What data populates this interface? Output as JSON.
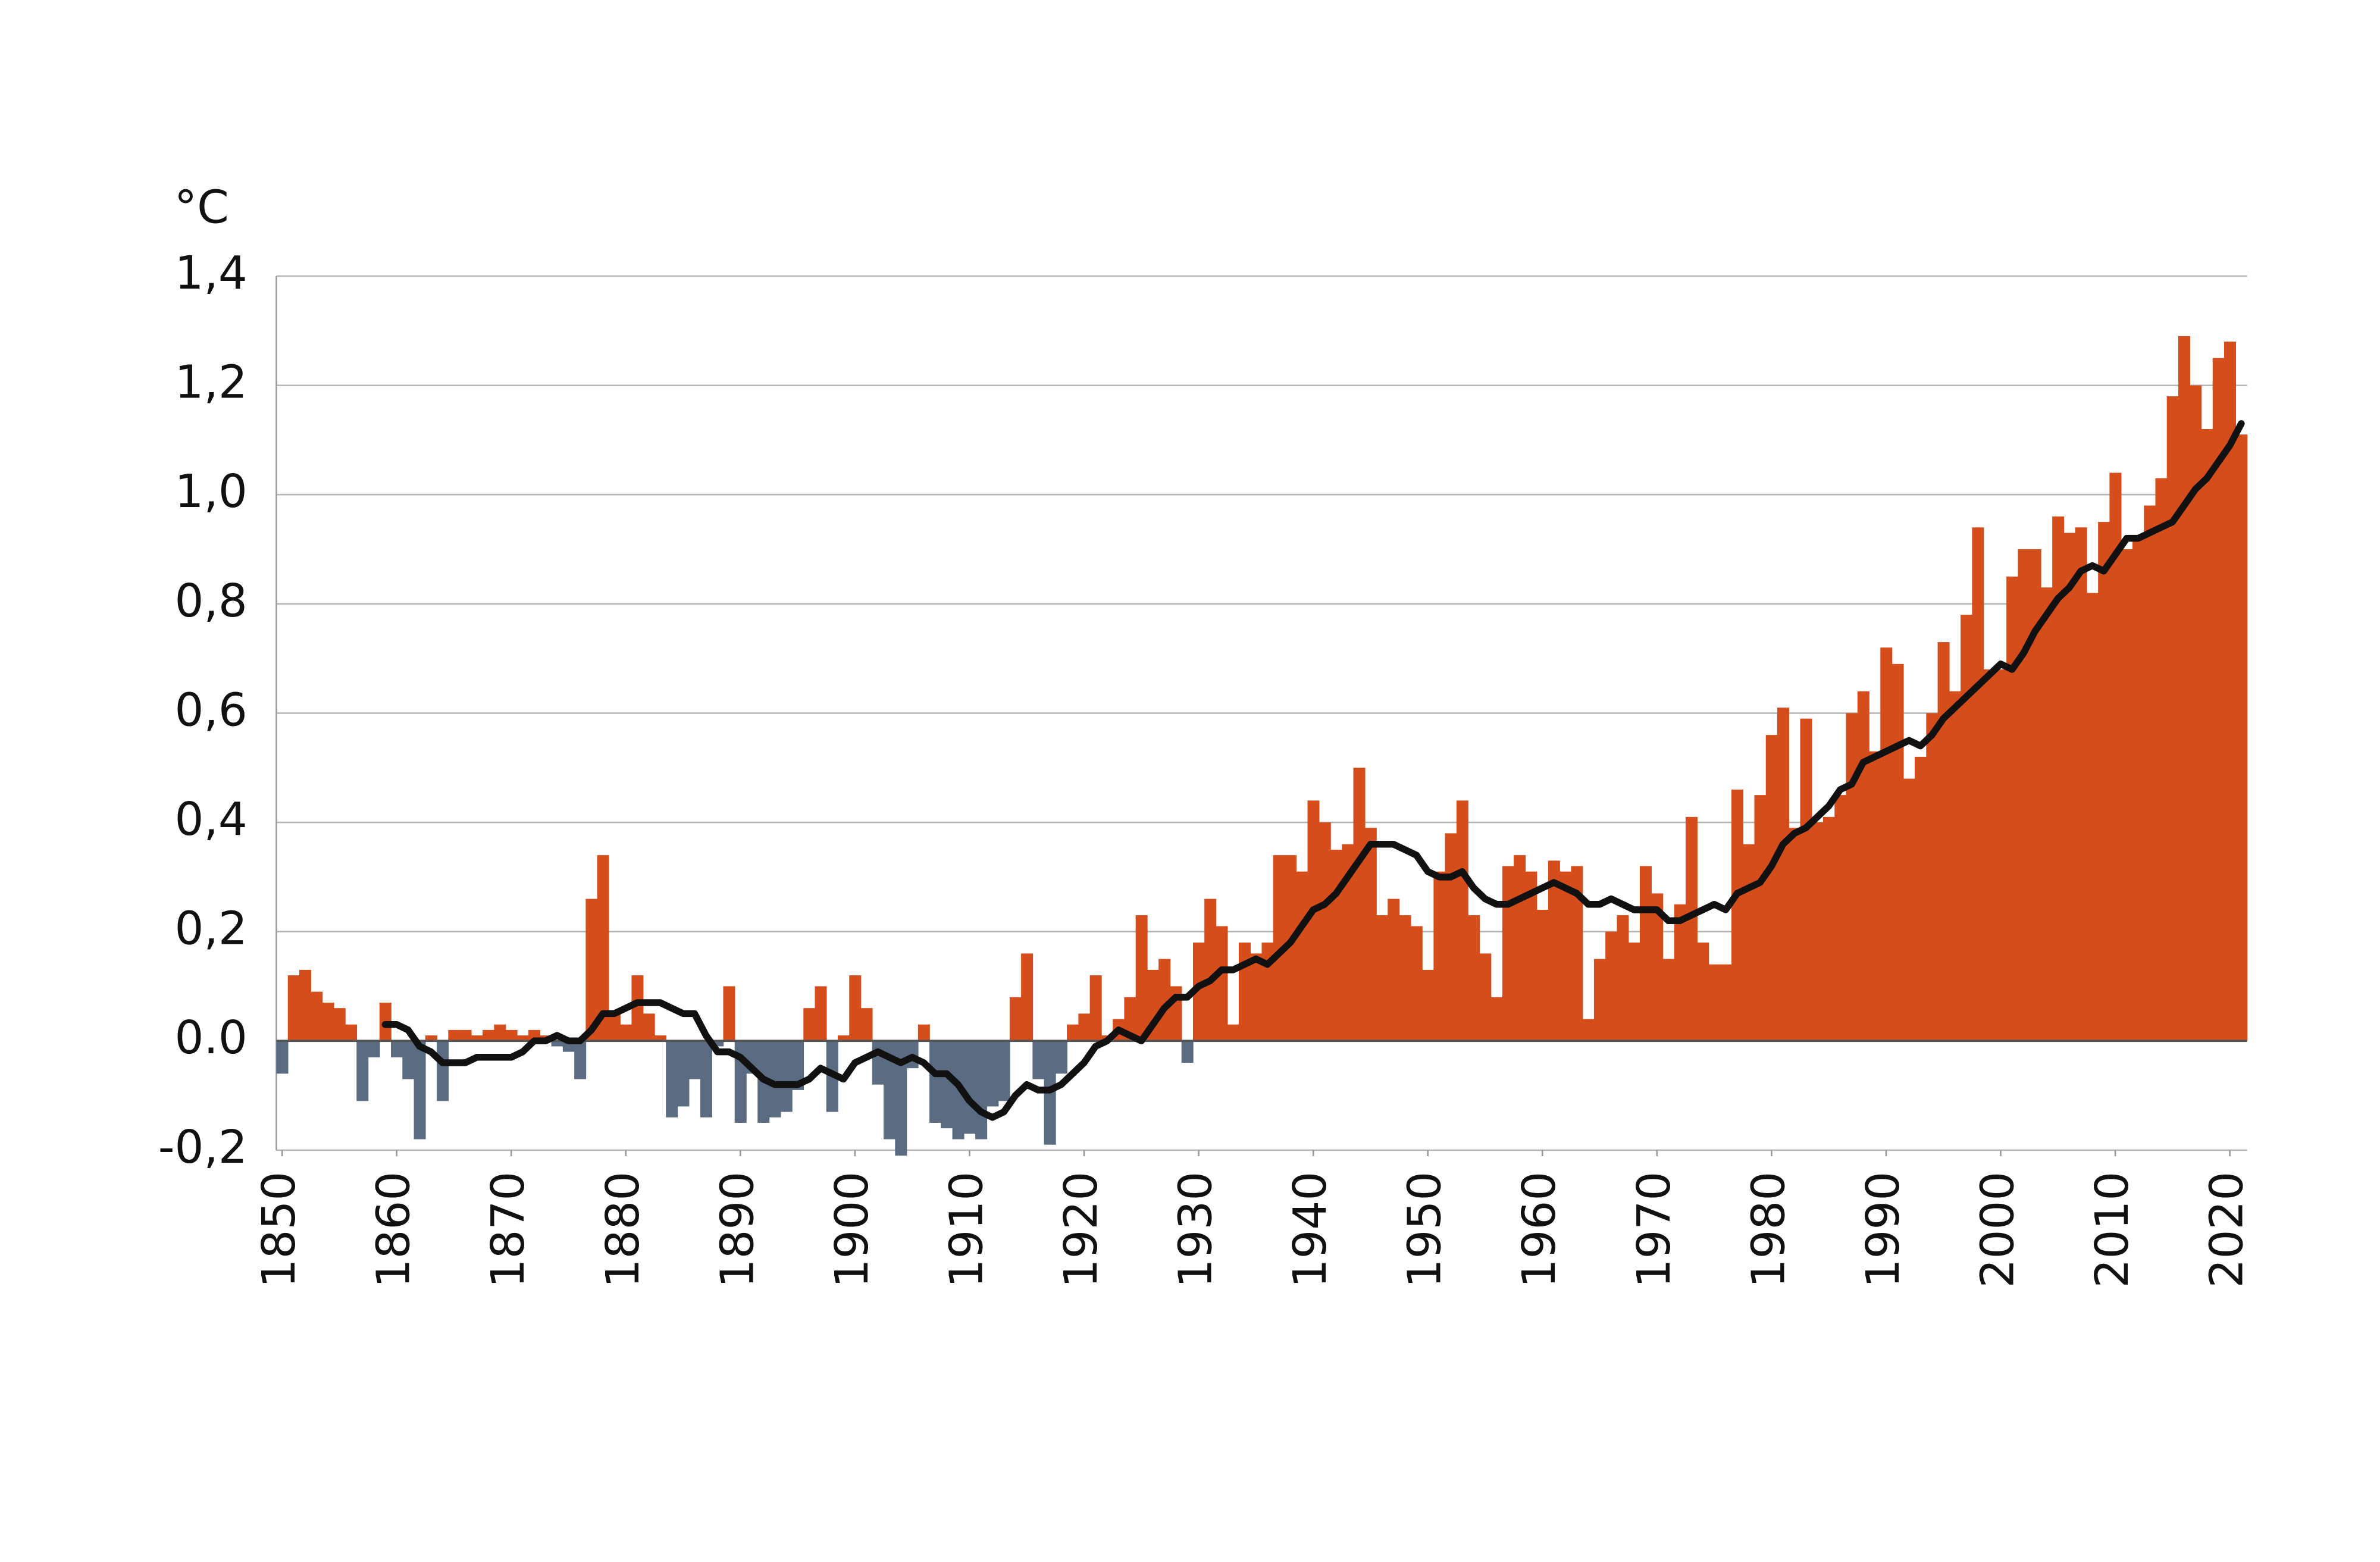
{
  "chart_data": {
    "type": "bar",
    "ylabel": "°C",
    "xlim": [
      1849.5,
      2021.5
    ],
    "xticks": [
      1850,
      1860,
      1870,
      1880,
      1890,
      1900,
      1910,
      1920,
      1930,
      1940,
      1950,
      1960,
      1970,
      1980,
      1990,
      2000,
      2010,
      2020
    ],
    "ylim": [
      -0.2,
      1.4
    ],
    "yticks": [
      {
        "value": -0.2,
        "label": "-0,2"
      },
      {
        "value": 0,
        "label": "0.0"
      },
      {
        "value": 0.2,
        "label": "0,2"
      },
      {
        "value": 0.4,
        "label": "0,4"
      },
      {
        "value": 0.6,
        "label": "0,6"
      },
      {
        "value": 0.8,
        "label": "0,8"
      },
      {
        "value": 1.0,
        "label": "1,0"
      },
      {
        "value": 1.2,
        "label": "1,2"
      },
      {
        "value": 1.4,
        "label": "1,4"
      }
    ],
    "grid": true,
    "positive_color": "#d44d1a",
    "negative_color": "#5a6b82",
    "x": [
      1850,
      1851,
      1852,
      1853,
      1854,
      1855,
      1856,
      1857,
      1858,
      1859,
      1860,
      1861,
      1862,
      1863,
      1864,
      1865,
      1866,
      1867,
      1868,
      1869,
      1870,
      1871,
      1872,
      1873,
      1874,
      1875,
      1876,
      1877,
      1878,
      1879,
      1880,
      1881,
      1882,
      1883,
      1884,
      1885,
      1886,
      1887,
      1888,
      1889,
      1890,
      1891,
      1892,
      1893,
      1894,
      1895,
      1896,
      1897,
      1898,
      1899,
      1900,
      1901,
      1902,
      1903,
      1904,
      1905,
      1906,
      1907,
      1908,
      1909,
      1910,
      1911,
      1912,
      1913,
      1914,
      1915,
      1916,
      1917,
      1918,
      1919,
      1920,
      1921,
      1922,
      1923,
      1924,
      1925,
      1926,
      1927,
      1928,
      1929,
      1930,
      1931,
      1932,
      1933,
      1934,
      1935,
      1936,
      1937,
      1938,
      1939,
      1940,
      1941,
      1942,
      1943,
      1944,
      1945,
      1946,
      1947,
      1948,
      1949,
      1950,
      1951,
      1952,
      1953,
      1954,
      1955,
      1956,
      1957,
      1958,
      1959,
      1960,
      1961,
      1962,
      1963,
      1964,
      1965,
      1966,
      1967,
      1968,
      1969,
      1970,
      1971,
      1972,
      1973,
      1974,
      1975,
      1976,
      1977,
      1978,
      1979,
      1980,
      1981,
      1982,
      1983,
      1984,
      1985,
      1986,
      1987,
      1988,
      1989,
      1990,
      1991,
      1992,
      1993,
      1994,
      1995,
      1996,
      1997,
      1998,
      1999,
      2000,
      2001,
      2002,
      2003,
      2004,
      2005,
      2006,
      2007,
      2008,
      2009,
      2010,
      2011,
      2012,
      2013,
      2014,
      2015,
      2016,
      2017,
      2018,
      2019,
      2020,
      2021
    ],
    "values": [
      -0.06,
      0.12,
      0.13,
      0.09,
      0.07,
      0.06,
      0.03,
      -0.11,
      -0.03,
      0.07,
      -0.03,
      -0.07,
      -0.18,
      0.01,
      -0.11,
      0.02,
      0.02,
      0.01,
      0.02,
      0.03,
      0.02,
      0.01,
      0.02,
      0.01,
      -0.01,
      -0.02,
      -0.07,
      0.26,
      0.34,
      0.05,
      0.03,
      0.12,
      0.05,
      0.01,
      -0.14,
      -0.12,
      -0.07,
      -0.14,
      -0.01,
      0.1,
      -0.15,
      -0.06,
      -0.15,
      -0.14,
      -0.13,
      -0.09,
      0.06,
      0.1,
      -0.13,
      0.01,
      0.12,
      0.06,
      -0.08,
      -0.18,
      -0.21,
      -0.05,
      0.03,
      -0.15,
      -0.16,
      -0.18,
      -0.17,
      -0.18,
      -0.12,
      -0.11,
      0.08,
      0.16,
      -0.07,
      -0.19,
      -0.06,
      0.03,
      0.05,
      0.12,
      0.01,
      0.04,
      0.08,
      0.23,
      0.13,
      0.15,
      0.1,
      -0.04,
      0.18,
      0.26,
      0.21,
      0.03,
      0.18,
      0.16,
      0.18,
      0.34,
      0.34,
      0.31,
      0.44,
      0.4,
      0.35,
      0.36,
      0.5,
      0.39,
      0.23,
      0.26,
      0.23,
      0.21,
      0.13,
      0.31,
      0.38,
      0.44,
      0.23,
      0.16,
      0.08,
      0.32,
      0.34,
      0.31,
      0.24,
      0.33,
      0.31,
      0.32,
      0.04,
      0.15,
      0.2,
      0.23,
      0.18,
      0.32,
      0.27,
      0.15,
      0.25,
      0.41,
      0.18,
      0.14,
      0.14,
      0.46,
      0.36,
      0.45,
      0.56,
      0.61,
      0.39,
      0.59,
      0.4,
      0.41,
      0.45,
      0.6,
      0.64,
      0.53,
      0.72,
      0.69,
      0.48,
      0.52,
      0.6,
      0.73,
      0.64,
      0.78,
      0.94,
      0.68,
      0.68,
      0.85,
      0.9,
      0.9,
      0.83,
      0.96,
      0.93,
      0.94,
      0.82,
      0.95,
      1.04,
      0.9,
      0.92,
      0.98,
      1.03,
      1.18,
      1.29,
      1.2,
      1.12,
      1.25,
      1.28,
      1.11
    ],
    "line": {
      "type": "line",
      "color": "#111111",
      "x": [
        1859,
        1860,
        1861,
        1862,
        1863,
        1864,
        1865,
        1866,
        1867,
        1868,
        1869,
        1870,
        1871,
        1872,
        1873,
        1874,
        1875,
        1876,
        1877,
        1878,
        1879,
        1880,
        1881,
        1882,
        1883,
        1884,
        1885,
        1886,
        1887,
        1888,
        1889,
        1890,
        1891,
        1892,
        1893,
        1894,
        1895,
        1896,
        1897,
        1898,
        1899,
        1900,
        1901,
        1902,
        1903,
        1904,
        1905,
        1906,
        1907,
        1908,
        1909,
        1910,
        1911,
        1912,
        1913,
        1914,
        1915,
        1916,
        1917,
        1918,
        1919,
        1920,
        1921,
        1922,
        1923,
        1924,
        1925,
        1926,
        1927,
        1928,
        1929,
        1930,
        1931,
        1932,
        1933,
        1934,
        1935,
        1936,
        1937,
        1938,
        1939,
        1940,
        1941,
        1942,
        1943,
        1944,
        1945,
        1946,
        1947,
        1948,
        1949,
        1950,
        1951,
        1952,
        1953,
        1954,
        1955,
        1956,
        1957,
        1958,
        1959,
        1960,
        1961,
        1962,
        1963,
        1964,
        1965,
        1966,
        1967,
        1968,
        1969,
        1970,
        1971,
        1972,
        1973,
        1974,
        1975,
        1976,
        1977,
        1978,
        1979,
        1980,
        1981,
        1982,
        1983,
        1984,
        1985,
        1986,
        1987,
        1988,
        1989,
        1990,
        1991,
        1992,
        1993,
        1994,
        1995,
        1996,
        1997,
        1998,
        1999,
        2000,
        2001,
        2002,
        2003,
        2004,
        2005,
        2006,
        2007,
        2008,
        2009,
        2010,
        2011,
        2012,
        2013,
        2014,
        2015,
        2016,
        2017,
        2018,
        2019,
        2020,
        2021
      ],
      "values": [
        0.03,
        0.03,
        0.02,
        -0.01,
        -0.02,
        -0.04,
        -0.04,
        -0.04,
        -0.03,
        -0.03,
        -0.03,
        -0.03,
        -0.02,
        0.0,
        0.0,
        0.01,
        0.0,
        0.0,
        0.02,
        0.05,
        0.05,
        0.06,
        0.07,
        0.07,
        0.07,
        0.06,
        0.05,
        0.05,
        0.01,
        -0.02,
        -0.02,
        -0.03,
        -0.05,
        -0.07,
        -0.08,
        -0.08,
        -0.08,
        -0.07,
        -0.05,
        -0.06,
        -0.07,
        -0.04,
        -0.03,
        -0.02,
        -0.03,
        -0.04,
        -0.03,
        -0.04,
        -0.06,
        -0.06,
        -0.08,
        -0.11,
        -0.13,
        -0.14,
        -0.13,
        -0.1,
        -0.08,
        -0.09,
        -0.09,
        -0.08,
        -0.06,
        -0.04,
        -0.01,
        0.0,
        0.02,
        0.01,
        0.0,
        0.03,
        0.06,
        0.08,
        0.08,
        0.1,
        0.11,
        0.13,
        0.13,
        0.14,
        0.15,
        0.14,
        0.16,
        0.18,
        0.21,
        0.24,
        0.25,
        0.27,
        0.3,
        0.33,
        0.36,
        0.36,
        0.36,
        0.35,
        0.34,
        0.31,
        0.3,
        0.3,
        0.31,
        0.28,
        0.26,
        0.25,
        0.25,
        0.26,
        0.27,
        0.28,
        0.29,
        0.28,
        0.27,
        0.25,
        0.25,
        0.26,
        0.25,
        0.24,
        0.24,
        0.24,
        0.22,
        0.22,
        0.23,
        0.24,
        0.25,
        0.24,
        0.27,
        0.28,
        0.29,
        0.32,
        0.36,
        0.38,
        0.39,
        0.41,
        0.43,
        0.46,
        0.47,
        0.51,
        0.52,
        0.53,
        0.54,
        0.55,
        0.54,
        0.56,
        0.59,
        0.61,
        0.63,
        0.65,
        0.67,
        0.69,
        0.68,
        0.71,
        0.75,
        0.78,
        0.81,
        0.83,
        0.86,
        0.87,
        0.86,
        0.89,
        0.92,
        0.92,
        0.93,
        0.94,
        0.95,
        0.98,
        1.01,
        1.03,
        1.06,
        1.09,
        1.13
      ]
    }
  }
}
